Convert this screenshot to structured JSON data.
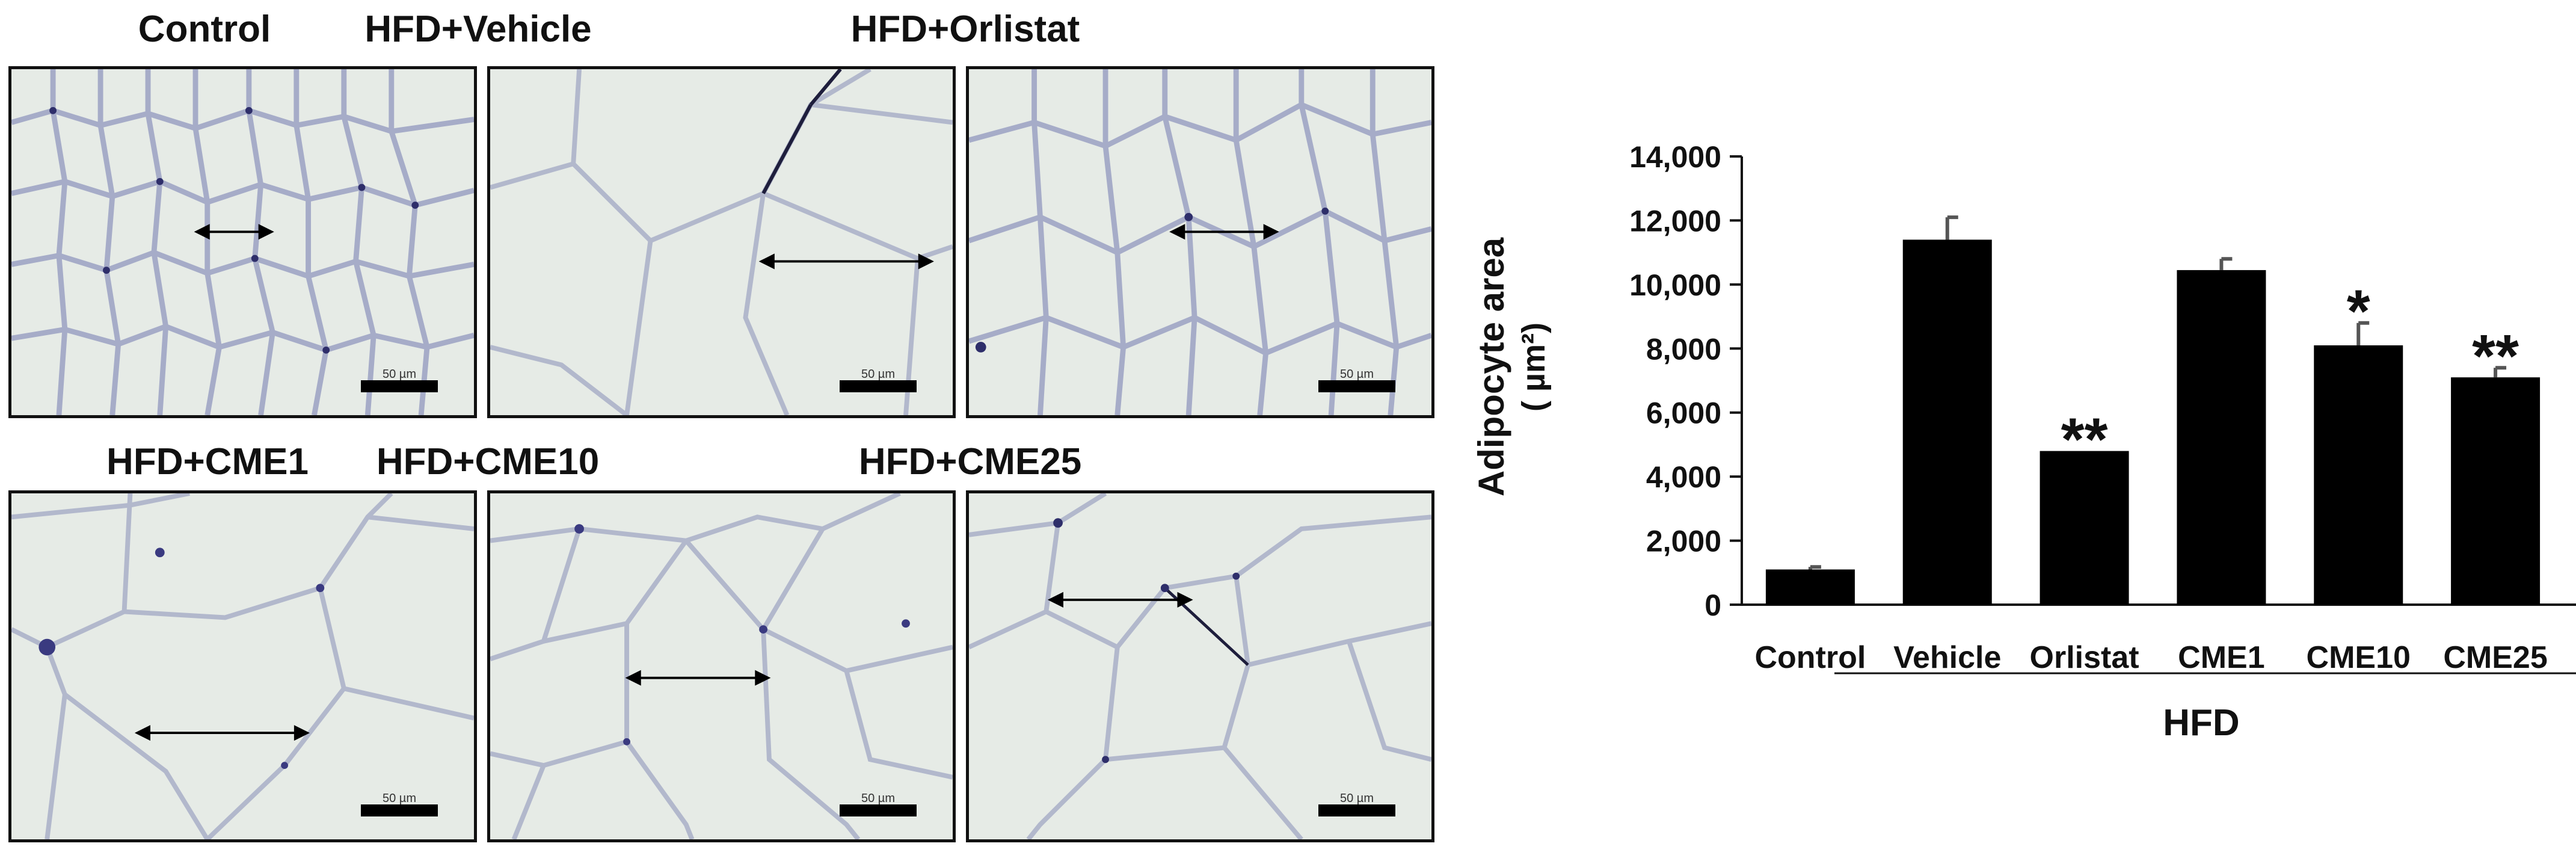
{
  "panels": [
    {
      "title": "Control",
      "scale_label": "50 µm"
    },
    {
      "title": "HFD+Vehicle",
      "scale_label": "50 µm"
    },
    {
      "title": "HFD+Orlistat",
      "scale_label": "50 µm"
    },
    {
      "title": "HFD+CME1",
      "scale_label": "50 µm"
    },
    {
      "title": "HFD+CME10",
      "scale_label": "50 µm"
    },
    {
      "title": "HFD+CME25",
      "scale_label": "50 µm"
    }
  ],
  "chart_data": {
    "type": "bar",
    "categories": [
      "Control",
      "Vehicle",
      "Orlistat",
      "CME1",
      "CME10",
      "CME25"
    ],
    "values": [
      1100,
      11400,
      4800,
      10450,
      8100,
      7100
    ],
    "errors": [
      80,
      700,
      0,
      350,
      700,
      300
    ],
    "significance": [
      "",
      "",
      "**",
      "",
      "*",
      "**"
    ],
    "group_label": "HFD",
    "ylabel_line1": "Adipocyte area",
    "ylabel_line2": "( µm²)",
    "yticks": [
      "0",
      "2,000",
      "4,000",
      "6,000",
      "8,000",
      "10,000",
      "12,000",
      "14,000"
    ],
    "ylim": [
      0,
      14000
    ],
    "bar_color": "#000000"
  }
}
